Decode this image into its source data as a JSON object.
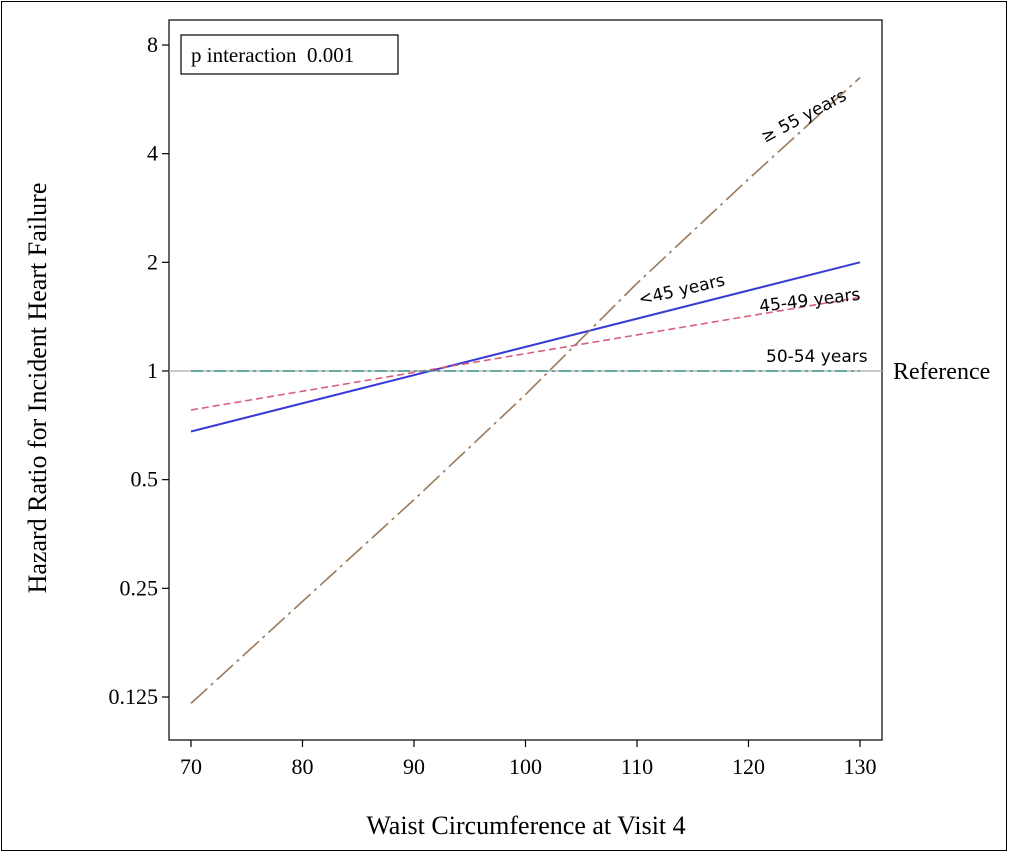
{
  "chart_data": {
    "type": "line",
    "title": "",
    "xlabel": "Waist Circumference at Visit 4",
    "ylabel": "Hazard Ratio for Incident Heart Failure",
    "xlim": [
      67,
      132
    ],
    "ylim": [
      0.115,
      8.5
    ],
    "yscale": "log2",
    "xticks": [
      70,
      80,
      90,
      100,
      110,
      120,
      130
    ],
    "yticks": [
      0.125,
      0.25,
      0.5,
      1,
      2,
      4,
      8
    ],
    "ytick_labels": [
      "0.125",
      "0.25",
      "0.5",
      "1",
      "2",
      "4",
      "8"
    ],
    "grid": false,
    "annotation": "p interaction  0.001",
    "reference_label": "Reference",
    "reference_value": 1,
    "series": [
      {
        "name": "<45 years",
        "color": "#3a3ad8",
        "style": "solid",
        "x": [
          70,
          130
        ],
        "y": [
          0.68,
          2.0
        ]
      },
      {
        "name": "45-49 years",
        "color": "#d9607a",
        "style": "dashed",
        "x": [
          70,
          130
        ],
        "y": [
          0.78,
          1.6
        ]
      },
      {
        "name": "50-54 years",
        "color": "#3f9a8f",
        "style": "dashdot",
        "x": [
          70,
          130
        ],
        "y": [
          1,
          1
        ]
      },
      {
        "name": "≥ 55 years",
        "color": "#9a7a5a",
        "style": "longdash",
        "x": [
          70,
          80,
          90,
          100,
          110,
          120,
          130
        ],
        "y": [
          0.12,
          0.23,
          0.44,
          0.86,
          1.75,
          3.4,
          6.5
        ]
      }
    ]
  }
}
